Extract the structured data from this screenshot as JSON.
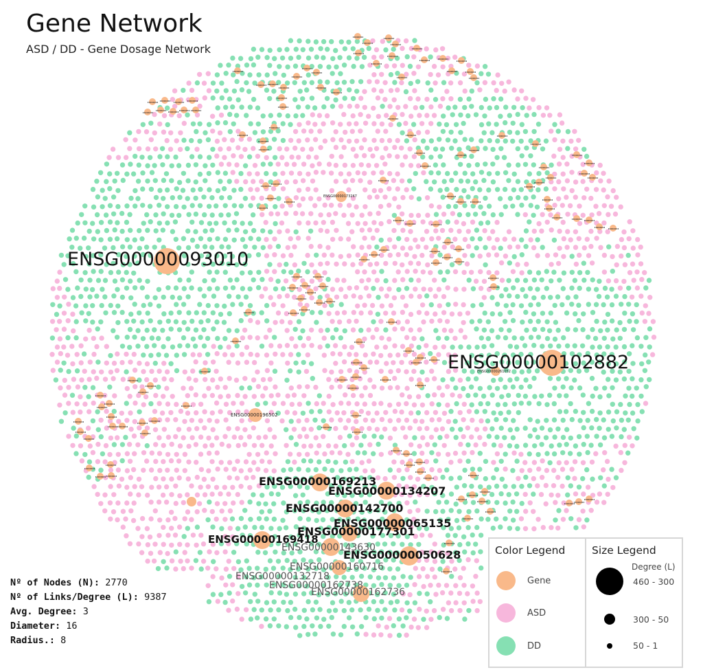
{
  "header": {
    "title": "Gene Network",
    "subtitle": "ASD / DD  - Gene Dosage Network"
  },
  "colors": {
    "gene": "#f9b98a",
    "asd": "#f7b7dc",
    "dd": "#86e0b3"
  },
  "gene_labels": {
    "big": [
      "ENSG00000093010",
      "ENSG00000102882"
    ],
    "bold": [
      "ENSG00000169213",
      "ENSG00000134207",
      "ENSG00000142700",
      "ENSG00000065135",
      "ENSG00000177301",
      "ENSG00000169418",
      "ENSG00000050628"
    ],
    "light": [
      "ENSG00000143630",
      "ENSG00000160716",
      "ENSG00000132718",
      "ENSG00000162738",
      "ENSG00000162736"
    ],
    "small": [
      "ENSG00000196502",
      "ENSG00000173267",
      "ENSG00000261052"
    ]
  },
  "stats": {
    "nodes_label": "Nº of Nodes (N):",
    "nodes_value": "2770",
    "links_label": "Nº of Links/Degree (L):",
    "links_value": "9387",
    "avg_label": "Avg. Degree:",
    "avg_value": "3",
    "diameter_label": "Diameter:",
    "diameter_value": "16",
    "radius_label": "Radius.:",
    "radius_value": "8"
  },
  "color_legend": {
    "title": "Color Legend",
    "items": [
      {
        "label": "Gene",
        "color": "#f9b98a"
      },
      {
        "label": "ASD",
        "color": "#f7b7dc"
      },
      {
        "label": "DD",
        "color": "#86e0b3"
      }
    ]
  },
  "size_legend": {
    "title": "Size Legend",
    "header": "Degree (L)",
    "items": [
      {
        "label": "460 - 300"
      },
      {
        "label": "300 - 50"
      },
      {
        "label": "50 - 1"
      }
    ]
  }
}
